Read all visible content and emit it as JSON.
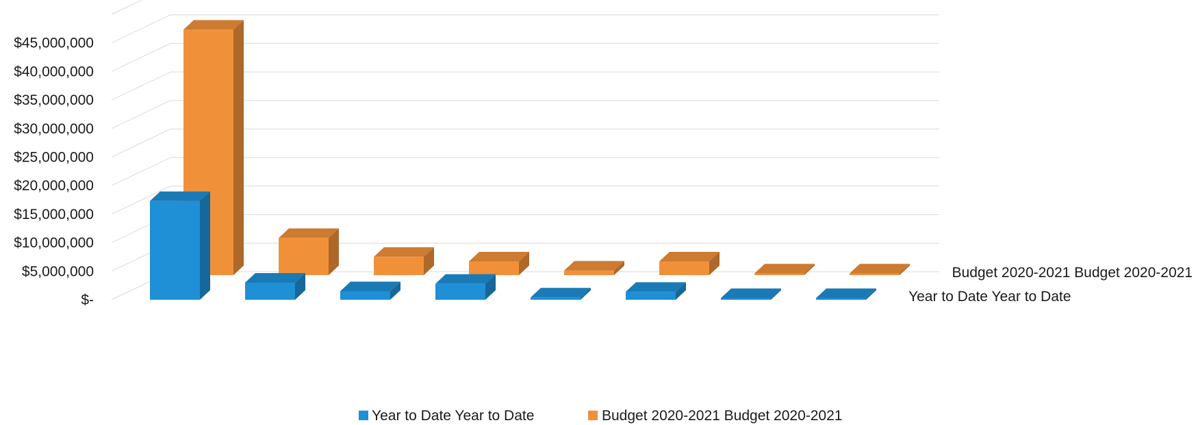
{
  "chart_data": {
    "type": "bar",
    "categories": [
      "",
      "",
      "",
      "",
      "",
      "",
      "",
      ""
    ],
    "series": [
      {
        "name": "Year to Date  Year to Date",
        "values": [
          17300000,
          3000000,
          1500000,
          2800000,
          400000,
          1400000,
          300000,
          300000
        ],
        "color": "#1f8fd6"
      },
      {
        "name": "Budget 2020-2021 Budget 2020-2021",
        "values": [
          43000000,
          6500000,
          3200000,
          2400000,
          800000,
          2400000,
          300000,
          300000
        ],
        "color": "#f0913a"
      }
    ],
    "y_ticks": [
      {
        "value": 0,
        "label": "$-"
      },
      {
        "value": 5000000,
        "label": "$5,000,000"
      },
      {
        "value": 10000000,
        "label": "$10,000,000"
      },
      {
        "value": 15000000,
        "label": "$15,000,000"
      },
      {
        "value": 20000000,
        "label": "$20,000,000"
      },
      {
        "value": 25000000,
        "label": "$25,000,000"
      },
      {
        "value": 30000000,
        "label": "$30,000,000"
      },
      {
        "value": 35000000,
        "label": "$35,000,000"
      },
      {
        "value": 40000000,
        "label": "$40,000,000"
      },
      {
        "value": 45000000,
        "label": "$45,000,000"
      }
    ],
    "ylim": [
      0,
      50000000
    ],
    "title": "",
    "xlabel": "",
    "ylabel": "",
    "grid": true,
    "legend_position": "bottom",
    "depth_labels": [
      "Year to Date  Year to Date",
      "Budget 2020-2021 Budget 2020-2021"
    ]
  }
}
